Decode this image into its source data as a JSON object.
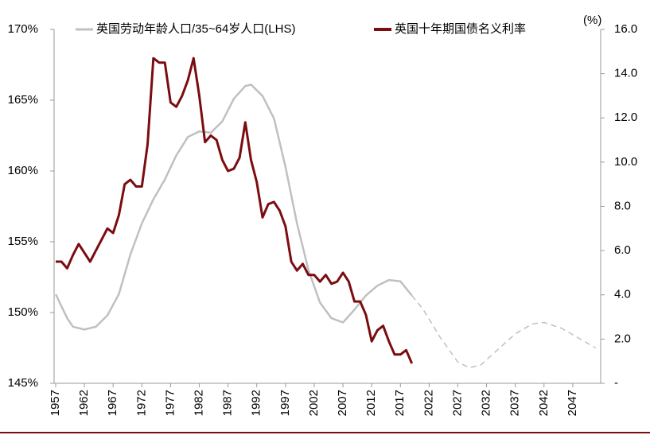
{
  "chart_data": {
    "type": "line",
    "xlim": [
      1957,
      2052
    ],
    "xticks": [
      1957,
      1962,
      1967,
      1972,
      1977,
      1982,
      1987,
      1992,
      1997,
      2002,
      2007,
      2012,
      2017,
      2022,
      2027,
      2032,
      2037,
      2042,
      2047
    ],
    "ylim": [
      145,
      170
    ],
    "yticks": [
      {
        "value": 145,
        "label": "145%"
      },
      {
        "value": 150,
        "label": "150%"
      },
      {
        "value": 155,
        "label": "155%"
      },
      {
        "value": 160,
        "label": "160%"
      },
      {
        "value": 165,
        "label": "165%"
      },
      {
        "value": 170,
        "label": "170%"
      }
    ],
    "y2lim": [
      0,
      16
    ],
    "y2ticks": [
      {
        "value": 0,
        "label": "-"
      },
      {
        "value": 2,
        "label": "2.0"
      },
      {
        "value": 4,
        "label": "4.0"
      },
      {
        "value": 6,
        "label": "6.0"
      },
      {
        "value": 8,
        "label": "8.0"
      },
      {
        "value": 10,
        "label": "10.0"
      },
      {
        "value": 12,
        "label": "12.0"
      },
      {
        "value": 14,
        "label": "14.0"
      },
      {
        "value": 16,
        "label": "16.0"
      }
    ],
    "y2_label": "(%)",
    "legend": "top",
    "series": [
      {
        "name": "英国劳动年龄人口/35~64岁人口(LHS)",
        "color": "#c0c0c0",
        "dashed_from": 2019,
        "x": [
          1957,
          1959,
          1960,
          1962,
          1964,
          1966,
          1968,
          1970,
          1972,
          1974,
          1976,
          1978,
          1980,
          1982,
          1984,
          1986,
          1988,
          1990,
          1991,
          1993,
          1995,
          1997,
          1999,
          2001,
          2003,
          2005,
          2007,
          2009,
          2011,
          2013,
          2015,
          2017,
          2019,
          2021,
          2024,
          2027,
          2029,
          2031,
          2034,
          2037,
          2040,
          2042,
          2045,
          2048,
          2051
        ],
        "values": [
          151.3,
          149.6,
          149.0,
          148.8,
          149.0,
          149.8,
          151.3,
          154.1,
          156.3,
          158.0,
          159.4,
          161.1,
          162.4,
          162.8,
          162.7,
          163.5,
          165.1,
          166.0,
          166.1,
          165.3,
          163.7,
          160.3,
          156.3,
          153.0,
          150.7,
          149.6,
          149.3,
          150.2,
          151.2,
          151.9,
          152.3,
          152.2,
          151.2,
          150.2,
          148.2,
          146.5,
          146.1,
          146.3,
          147.4,
          148.5,
          149.2,
          149.3,
          148.9,
          148.2,
          147.5
        ]
      },
      {
        "name": "英国十年期国债名义利率",
        "color": "#7b0c10",
        "axis": "y2",
        "x": [
          1957,
          1958,
          1959,
          1960,
          1961,
          1962,
          1963,
          1964,
          1965,
          1966,
          1967,
          1968,
          1969,
          1970,
          1971,
          1972,
          1973,
          1974,
          1975,
          1976,
          1977,
          1978,
          1979,
          1980,
          1981,
          1982,
          1983,
          1984,
          1985,
          1986,
          1987,
          1988,
          1989,
          1990,
          1991,
          1992,
          1993,
          1994,
          1995,
          1996,
          1997,
          1998,
          1999,
          2000,
          2001,
          2002,
          2003,
          2004,
          2005,
          2006,
          2007,
          2008,
          2009,
          2010,
          2011,
          2012,
          2013,
          2014,
          2015,
          2016,
          2017,
          2018,
          2019
        ],
        "values": [
          5.5,
          5.5,
          5.2,
          5.8,
          6.3,
          5.9,
          5.5,
          6.0,
          6.5,
          7.0,
          6.8,
          7.6,
          9.0,
          9.2,
          8.9,
          8.9,
          10.8,
          14.7,
          14.5,
          14.5,
          12.7,
          12.5,
          13.0,
          13.7,
          14.7,
          13.0,
          10.9,
          11.2,
          11.0,
          10.1,
          9.6,
          9.7,
          10.2,
          11.8,
          10.1,
          9.1,
          7.5,
          8.1,
          8.2,
          7.8,
          7.1,
          5.5,
          5.1,
          5.4,
          4.9,
          4.9,
          4.6,
          4.9,
          4.5,
          4.6,
          5.0,
          4.6,
          3.7,
          3.7,
          3.1,
          1.9,
          2.4,
          2.6,
          1.9,
          1.3,
          1.3,
          1.5,
          0.9
        ]
      }
    ]
  }
}
